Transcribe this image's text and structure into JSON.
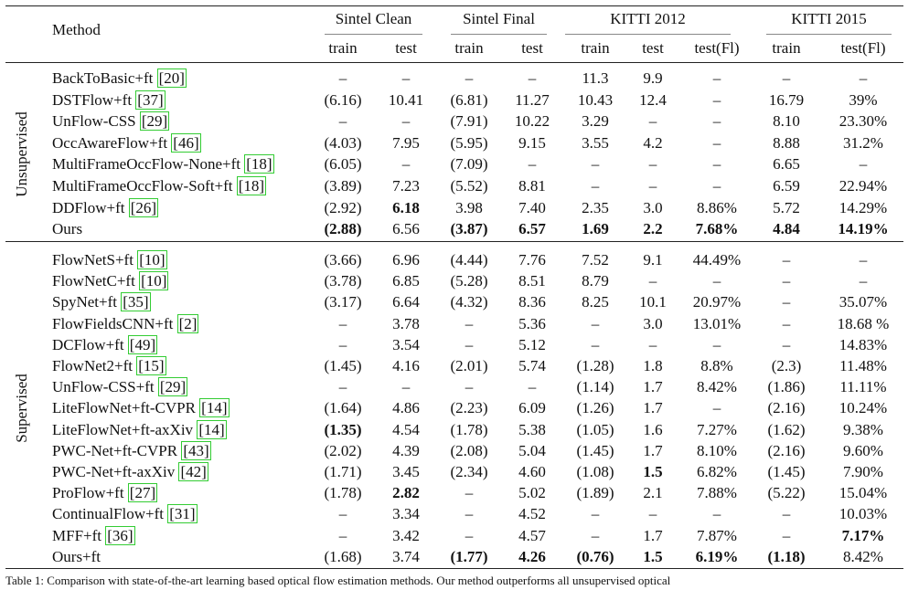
{
  "header": {
    "method": "Method",
    "groups": [
      {
        "title": "Sintel Clean",
        "cols": [
          "train",
          "test"
        ]
      },
      {
        "title": "Sintel Final",
        "cols": [
          "train",
          "test"
        ]
      },
      {
        "title": "KITTI 2012",
        "cols": [
          "train",
          "test",
          "test(Fl)"
        ]
      },
      {
        "title": "KITTI 2015",
        "cols": [
          "train",
          "test(Fl)"
        ]
      }
    ]
  },
  "sections": [
    {
      "label": "Unsupervised",
      "rows": [
        {
          "method": "BackToBasic+ft",
          "cite": "[20]",
          "cells": [
            "–",
            "–",
            "–",
            "–",
            "11.3",
            "9.9",
            "–",
            "–",
            "–"
          ],
          "bold": []
        },
        {
          "method": "DSTFlow+ft",
          "cite": "[37]",
          "cells": [
            "(6.16)",
            "10.41",
            "(6.81)",
            "11.27",
            "10.43",
            "12.4",
            "–",
            "16.79",
            "39%"
          ],
          "bold": []
        },
        {
          "method": "UnFlow-CSS",
          "cite": "[29]",
          "cells": [
            "–",
            "–",
            "(7.91)",
            "10.22",
            "3.29",
            "–",
            "–",
            "8.10",
            "23.30%"
          ],
          "bold": []
        },
        {
          "method": "OccAwareFlow+ft",
          "cite": "[46]",
          "cells": [
            "(4.03)",
            "7.95",
            "(5.95)",
            "9.15",
            "3.55",
            "4.2",
            "–",
            "8.88",
            "31.2%"
          ],
          "bold": []
        },
        {
          "method": "MultiFrameOccFlow-None+ft",
          "cite": "[18]",
          "cells": [
            "(6.05)",
            "–",
            "(7.09)",
            "–",
            "–",
            "–",
            "–",
            "6.65",
            "–"
          ],
          "bold": []
        },
        {
          "method": "MultiFrameOccFlow-Soft+ft",
          "cite": "[18]",
          "cells": [
            "(3.89)",
            "7.23",
            "(5.52)",
            "8.81",
            "–",
            "–",
            "–",
            "6.59",
            "22.94%"
          ],
          "bold": []
        },
        {
          "method": "DDFlow+ft",
          "cite": "[26]",
          "cells": [
            "(2.92)",
            "6.18",
            "3.98",
            "7.40",
            "2.35",
            "3.0",
            "8.86%",
            "5.72",
            "14.29%"
          ],
          "bold": [
            1
          ]
        },
        {
          "method": "Ours",
          "cells": [
            "(2.88)",
            "6.56",
            "(3.87)",
            "6.57",
            "1.69",
            "2.2",
            "7.68%",
            "4.84",
            "14.19%"
          ],
          "bold": [
            0,
            2,
            3,
            4,
            5,
            6,
            7,
            8
          ]
        }
      ]
    },
    {
      "label": "Supervised",
      "rows": [
        {
          "method": "FlowNetS+ft",
          "cite": "[10]",
          "cells": [
            "(3.66)",
            "6.96",
            "(4.44)",
            "7.76",
            "7.52",
            "9.1",
            "44.49%",
            "–",
            "–"
          ],
          "bold": []
        },
        {
          "method": "FlowNetC+ft",
          "cite": "[10]",
          "cells": [
            "(3.78)",
            "6.85",
            "(5.28)",
            "8.51",
            "8.79",
            "–",
            "–",
            "–",
            "–"
          ],
          "bold": []
        },
        {
          "method": "SpyNet+ft",
          "cite": "[35]",
          "cells": [
            "(3.17)",
            "6.64",
            "(4.32)",
            "8.36",
            "8.25",
            "10.1",
            "20.97%",
            "–",
            "35.07%"
          ],
          "bold": []
        },
        {
          "method": "FlowFieldsCNN+ft",
          "cite": "[2]",
          "cells": [
            "–",
            "3.78",
            "–",
            "5.36",
            "–",
            "3.0",
            "13.01%",
            "–",
            "18.68 %"
          ],
          "bold": []
        },
        {
          "method": "DCFlow+ft",
          "cite": "[49]",
          "cells": [
            "–",
            "3.54",
            "–",
            "5.12",
            "–",
            "–",
            "–",
            "–",
            "14.83%"
          ],
          "bold": []
        },
        {
          "method": "FlowNet2+ft",
          "cite": "[15]",
          "cells": [
            "(1.45)",
            "4.16",
            "(2.01)",
            "5.74",
            "(1.28)",
            "1.8",
            "8.8%",
            "(2.3)",
            "11.48%"
          ],
          "bold": []
        },
        {
          "method": "UnFlow-CSS+ft",
          "cite": "[29]",
          "cells": [
            "–",
            "–",
            "–",
            "–",
            "(1.14)",
            "1.7",
            "8.42%",
            "(1.86)",
            "11.11%"
          ],
          "bold": []
        },
        {
          "method": "LiteFlowNet+ft-CVPR",
          "cite": "[14]",
          "cells": [
            "(1.64)",
            "4.86",
            "(2.23)",
            "6.09",
            "(1.26)",
            "1.7",
            "–",
            "(2.16)",
            "10.24%"
          ],
          "bold": []
        },
        {
          "method": "LiteFlowNet+ft-axXiv",
          "cite": "[14]",
          "cells": [
            "(1.35)",
            "4.54",
            "(1.78)",
            "5.38",
            "(1.05)",
            "1.6",
            "7.27%",
            "(1.62)",
            "9.38%"
          ],
          "bold": [
            0
          ]
        },
        {
          "method": "PWC-Net+ft-CVPR",
          "cite": "[43]",
          "cells": [
            "(2.02)",
            "4.39",
            "(2.08)",
            "5.04",
            "(1.45)",
            "1.7",
            "8.10%",
            "(2.16)",
            "9.60%"
          ],
          "bold": []
        },
        {
          "method": "PWC-Net+ft-axXiv",
          "cite": "[42]",
          "cells": [
            "(1.71)",
            "3.45",
            "(2.34)",
            "4.60",
            "(1.08)",
            "1.5",
            "6.82%",
            "(1.45)",
            "7.90%"
          ],
          "bold": [
            5
          ]
        },
        {
          "method": "ProFlow+ft",
          "cite": "[27]",
          "cells": [
            "(1.78)",
            "2.82",
            "–",
            "5.02",
            "(1.89)",
            "2.1",
            "7.88%",
            "(5.22)",
            "15.04%"
          ],
          "bold": [
            1
          ]
        },
        {
          "method": "ContinualFlow+ft",
          "cite": "[31]",
          "cells": [
            "–",
            "3.34",
            "–",
            "4.52",
            "–",
            "–",
            "–",
            "–",
            "10.03%"
          ],
          "bold": []
        },
        {
          "method": "MFF+ft",
          "cite": "[36]",
          "cells": [
            "–",
            "3.42",
            "–",
            "4.57",
            "–",
            "1.7",
            "7.87%",
            "–",
            "7.17%"
          ],
          "bold": [
            8
          ]
        },
        {
          "method": "Ours+ft",
          "cells": [
            "(1.68)",
            "3.74",
            "(1.77)",
            "4.26",
            "(0.76)",
            "1.5",
            "6.19%",
            "(1.18)",
            "8.42%"
          ],
          "bold": [
            2,
            3,
            4,
            5,
            6,
            7
          ]
        }
      ]
    }
  ],
  "caption": "Table 1: Comparison with state-of-the-art learning based optical flow estimation methods. Our method outperforms all unsupervised optical"
}
